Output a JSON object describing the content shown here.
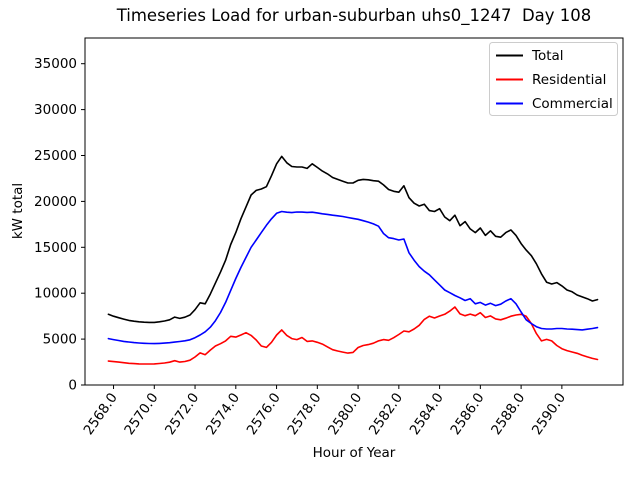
{
  "figure": {
    "title": "Timeseries Load for urban-suburban uhs0_1247  Day 108"
  },
  "chart_data": {
    "type": "line",
    "title": "Timeseries Load for urban-suburban uhs0_1247  Day 108",
    "xlabel": "Hour of Year",
    "ylabel": "kW total",
    "grid": false,
    "legend_position": "upper right",
    "xlim": [
      2566.6,
      2593.0
    ],
    "ylim": [
      0,
      37800
    ],
    "x_ticks": [
      2568,
      2570,
      2572,
      2574,
      2576,
      2578,
      2580,
      2582,
      2584,
      2586,
      2588,
      2590
    ],
    "x_tick_labels": [
      "2568.0",
      "2570.0",
      "2572.0",
      "2574.0",
      "2576.0",
      "2578.0",
      "2580.0",
      "2582.0",
      "2584.0",
      "2586.0",
      "2588.0",
      "2590.0"
    ],
    "y_ticks": [
      0,
      5000,
      10000,
      15000,
      20000,
      25000,
      30000,
      35000
    ],
    "y_tick_labels": [
      "0",
      "5000",
      "10000",
      "15000",
      "20000",
      "25000",
      "30000",
      "35000"
    ],
    "x_start": 2567.75,
    "x_step": 0.25,
    "n_points": 97,
    "series": [
      {
        "name": "Total",
        "color": "#000000",
        "values": [
          7700,
          7500,
          7330,
          7180,
          7040,
          6950,
          6880,
          6840,
          6820,
          6820,
          6880,
          6970,
          7100,
          7400,
          7250,
          7390,
          7630,
          8200,
          8950,
          8850,
          9900,
          11100,
          12300,
          13600,
          15300,
          16600,
          18100,
          19400,
          20700,
          21200,
          21350,
          21600,
          22800,
          24100,
          24900,
          24200,
          23800,
          23750,
          23750,
          23600,
          24100,
          23700,
          23300,
          23000,
          22600,
          22400,
          22200,
          22000,
          22000,
          22300,
          22400,
          22350,
          22250,
          22200,
          21800,
          21300,
          21100,
          21000,
          21700,
          20400,
          19800,
          19500,
          19700,
          19000,
          18900,
          19200,
          18300,
          17900,
          18500,
          17350,
          17800,
          17000,
          16600,
          17100,
          16300,
          16800,
          16200,
          16100,
          16600,
          16900,
          16300,
          15400,
          14700,
          14100,
          13200,
          12100,
          11200,
          11000,
          11150,
          10800,
          10350,
          10150,
          9800,
          9600,
          9400,
          9150,
          9300
        ]
      },
      {
        "name": "Residential",
        "color": "#ff0000",
        "values": [
          2600,
          2550,
          2500,
          2430,
          2360,
          2330,
          2300,
          2290,
          2290,
          2300,
          2340,
          2400,
          2480,
          2650,
          2500,
          2560,
          2700,
          3050,
          3500,
          3300,
          3800,
          4250,
          4500,
          4800,
          5300,
          5220,
          5450,
          5700,
          5400,
          4900,
          4250,
          4100,
          4650,
          5450,
          6000,
          5400,
          5050,
          4950,
          5170,
          4750,
          4800,
          4650,
          4450,
          4150,
          3850,
          3700,
          3580,
          3480,
          3550,
          4080,
          4300,
          4400,
          4550,
          4800,
          4950,
          4870,
          5150,
          5500,
          5880,
          5800,
          6100,
          6500,
          7150,
          7500,
          7300,
          7520,
          7700,
          8050,
          8500,
          7750,
          7550,
          7720,
          7550,
          7880,
          7350,
          7530,
          7200,
          7100,
          7280,
          7500,
          7620,
          7700,
          7480,
          6700,
          5600,
          4800,
          4970,
          4800,
          4300,
          3950,
          3750,
          3600,
          3450,
          3250,
          3060,
          2900,
          2780
        ]
      },
      {
        "name": "Commercial",
        "color": "#0000ff",
        "values": [
          5050,
          4950,
          4850,
          4750,
          4680,
          4620,
          4570,
          4540,
          4520,
          4510,
          4530,
          4560,
          4610,
          4670,
          4740,
          4820,
          4920,
          5150,
          5450,
          5800,
          6300,
          7000,
          7900,
          9000,
          10300,
          11600,
          12800,
          13900,
          15000,
          15800,
          16600,
          17400,
          18100,
          18700,
          18900,
          18820,
          18780,
          18850,
          18840,
          18800,
          18820,
          18750,
          18650,
          18580,
          18500,
          18430,
          18350,
          18250,
          18150,
          18050,
          17900,
          17750,
          17550,
          17300,
          16500,
          16050,
          15950,
          15800,
          15900,
          14400,
          13600,
          12900,
          12400,
          12000,
          11450,
          10900,
          10350,
          10050,
          9750,
          9500,
          9200,
          9400,
          8850,
          9000,
          8700,
          8900,
          8650,
          8800,
          9150,
          9400,
          8850,
          7950,
          7100,
          6700,
          6350,
          6150,
          6100,
          6100,
          6150,
          6150,
          6100,
          6080,
          6030,
          6000,
          6080,
          6150,
          6250
        ]
      }
    ]
  }
}
